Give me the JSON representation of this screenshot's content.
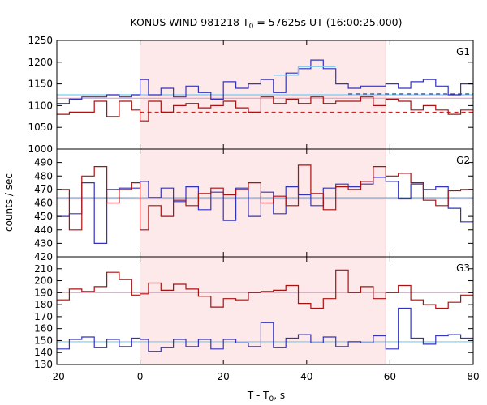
{
  "chart_data": {
    "type": "line",
    "title_main": "KONUS-WIND 981218 T",
    "title_sub": "0",
    "title_rest": " = 57625s UT (16:00:25.000)",
    "xlabel_main": "T - T",
    "xlabel_sub": "0",
    "xlabel_rest": ", s",
    "ylabel": "counts / sec",
    "xlim": [
      -20,
      80
    ],
    "x_ticks": [
      -20,
      0,
      20,
      40,
      60,
      80
    ],
    "x_tick_labels": [
      "-20",
      "0",
      "20",
      "40",
      "60",
      "80"
    ],
    "shaded_interval": [
      0,
      59
    ],
    "colors": {
      "blue": "#3333bb",
      "red": "#aa1111",
      "light_blue": "#77ccee",
      "pink": "#ee99cc",
      "shade": "#fde8ea",
      "dashed_red": "#cc2222",
      "dashed_blue": "#333399"
    },
    "panels": [
      {
        "label": "G1",
        "ylim": [
          1000,
          1250
        ],
        "y_ticks": [
          1000,
          1050,
          1100,
          1150,
          1200,
          1250
        ],
        "y_tick_labels": [
          "1000",
          "1050",
          "1100",
          "1150",
          "1200",
          "1250"
        ],
        "bin_edges": [
          -20,
          -17,
          -14,
          -11,
          -8,
          -5,
          -2,
          0,
          2,
          5,
          8,
          11,
          14,
          17,
          20,
          23,
          26,
          29,
          32,
          35,
          38,
          41,
          44,
          47,
          50,
          53,
          56,
          59,
          62,
          65,
          68,
          71,
          74,
          77,
          80
        ],
        "series": [
          {
            "color_key": "blue",
            "values": [
              1105,
              1115,
              1120,
              1120,
              1125,
              1120,
              1125,
              1160,
              1125,
              1140,
              1120,
              1145,
              1130,
              1115,
              1155,
              1140,
              1150,
              1160,
              1130,
              1175,
              1185,
              1205,
              1185,
              1150,
              1140,
              1145,
              1145,
              1150,
              1140,
              1155,
              1160,
              1145,
              1125,
              1150
            ]
          },
          {
            "color_key": "red",
            "values": [
              1080,
              1085,
              1085,
              1110,
              1075,
              1110,
              1090,
              1065,
              1110,
              1085,
              1100,
              1105,
              1095,
              1100,
              1110,
              1095,
              1085,
              1120,
              1105,
              1115,
              1105,
              1120,
              1105,
              1110,
              1110,
              1120,
              1100,
              1115,
              1110,
              1090,
              1100,
              1090,
              1080,
              1090
            ]
          }
        ],
        "highlight": {
          "color_key": "light_blue",
          "edges": [
            32,
            38,
            41,
            47
          ],
          "values": [
            1170,
            1190,
            1190
          ]
        },
        "bg_lines": [
          {
            "color_key": "light_blue",
            "style": "solid",
            "x": [
              -20,
              80
            ],
            "y": [
              1125,
              1125
            ]
          },
          {
            "color_key": "pink",
            "style": "solid",
            "x": [
              -20,
              80
            ],
            "y": [
              1117,
              1117
            ]
          },
          {
            "color_key": "dashed_blue",
            "style": "dashed",
            "x": [
              50,
              80
            ],
            "y": [
              1127,
              1127
            ]
          },
          {
            "color_key": "dashed_red",
            "style": "dashed",
            "x": [
              0,
              80
            ],
            "y": [
              1085,
              1085
            ]
          }
        ]
      },
      {
        "label": "G2",
        "ylim": [
          420,
          500
        ],
        "y_ticks": [
          420,
          430,
          440,
          450,
          460,
          470,
          480,
          490
        ],
        "y_tick_labels": [
          "420",
          "430",
          "440",
          "450",
          "460",
          "470",
          "480",
          "490"
        ],
        "bin_edges": [
          -20,
          -17,
          -14,
          -11,
          -8,
          -5,
          -2,
          0,
          2,
          5,
          8,
          11,
          14,
          17,
          20,
          23,
          26,
          29,
          32,
          35,
          38,
          41,
          44,
          47,
          50,
          53,
          56,
          59,
          62,
          65,
          68,
          71,
          74,
          77,
          80
        ],
        "series": [
          {
            "color_key": "blue",
            "values": [
              450,
              452,
              475,
              430,
              470,
              471,
              471,
              476,
              464,
              471,
              461,
              472,
              455,
              468,
              447,
              471,
              450,
              468,
              452,
              472,
              466,
              458,
              471,
              474,
              472,
              474,
              479,
              476,
              463,
              474,
              470,
              472,
              456,
              446
            ]
          },
          {
            "color_key": "red",
            "values": [
              470,
              440,
              480,
              487,
              460,
              470,
              475,
              440,
              458,
              450,
              462,
              458,
              467,
              471,
              466,
              470,
              475,
              460,
              465,
              458,
              488,
              467,
              455,
              472,
              470,
              476,
              487,
              480,
              482,
              475,
              462,
              458,
              469,
              470
            ]
          }
        ],
        "bg_lines": [
          {
            "color_key": "light_blue",
            "style": "solid",
            "x": [
              -20,
              80
            ],
            "y": [
              464,
              464
            ]
          },
          {
            "color_key": "pink",
            "style": "solid",
            "x": [
              -20,
              80
            ],
            "y": [
              463,
              463
            ]
          }
        ]
      },
      {
        "label": "G3",
        "ylim": [
          130,
          220
        ],
        "y_ticks": [
          130,
          140,
          150,
          160,
          170,
          180,
          190,
          200,
          210
        ],
        "y_tick_labels": [
          "130",
          "140",
          "150",
          "160",
          "170",
          "180",
          "190",
          "200",
          "210"
        ],
        "bin_edges": [
          -20,
          -17,
          -14,
          -11,
          -8,
          -5,
          -2,
          0,
          2,
          5,
          8,
          11,
          14,
          17,
          20,
          23,
          26,
          29,
          32,
          35,
          38,
          41,
          44,
          47,
          50,
          53,
          56,
          59,
          62,
          65,
          68,
          71,
          74,
          77,
          80
        ],
        "series": [
          {
            "color_key": "blue",
            "values": [
              143,
              151,
              153,
              144,
              151,
              145,
              152,
              151,
              141,
              144,
              151,
              145,
              151,
              143,
              151,
              148,
              145,
              165,
              144,
              152,
              155,
              148,
              153,
              145,
              149,
              148,
              154,
              143,
              177,
              152,
              147,
              154,
              155,
              152
            ]
          },
          {
            "color_key": "red",
            "values": [
              184,
              193,
              191,
              195,
              207,
              201,
              188,
              189,
              198,
              192,
              197,
              193,
              187,
              178,
              185,
              184,
              190,
              191,
              192,
              196,
              181,
              177,
              185,
              209,
              190,
              195,
              185,
              190,
              196,
              184,
              180,
              177,
              182,
              188
            ]
          }
        ],
        "bg_lines": [
          {
            "color_key": "light_blue",
            "style": "solid",
            "x": [
              -20,
              80
            ],
            "y": [
              149,
              149
            ]
          },
          {
            "color_key": "pink",
            "style": "solid",
            "x": [
              -20,
              80
            ],
            "y": [
              190,
              190
            ]
          }
        ]
      }
    ]
  }
}
